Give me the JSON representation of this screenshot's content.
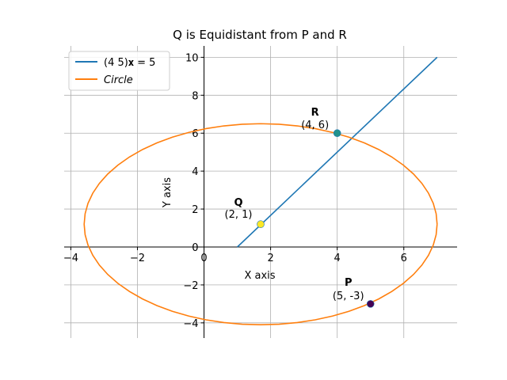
{
  "chart_data": {
    "type": "line",
    "title": "Q is Equidistant from P and R",
    "xlabel": "X axis",
    "ylabel": "Y axis",
    "xlim": [
      -4.2,
      7.6
    ],
    "ylim": [
      -4.8,
      10.6
    ],
    "xticks": [
      "−4",
      "−2",
      "0",
      "2",
      "4",
      "6"
    ],
    "xtick_values": [
      -4,
      -2,
      0,
      2,
      4,
      6
    ],
    "yticks": [
      "−4",
      "−2",
      "0",
      "2",
      "4",
      "6",
      "8",
      "10"
    ],
    "ytick_values": [
      -4,
      -2,
      0,
      2,
      4,
      6,
      8,
      10
    ],
    "grid": true,
    "spines": "centered at origin",
    "legend_position": "top-left",
    "series": [
      {
        "name": "(4   5)𝐱 = 5",
        "kind": "line",
        "color": "#1f77b4",
        "points": [
          [
            1.0,
            0.0
          ],
          [
            7.0,
            10.0
          ]
        ]
      },
      {
        "name": "Circle",
        "kind": "circle",
        "color": "#ff7f0e",
        "center": [
          1.7,
          1.2
        ],
        "radius": 5.3
      }
    ],
    "markers": [
      {
        "name": "P",
        "coords": "(5, -3)",
        "x": 5,
        "y": -3,
        "color": "#440154"
      },
      {
        "name": "R",
        "coords": "(4, 6)",
        "x": 4,
        "y": 6,
        "color": "#21918c"
      },
      {
        "name": "Q",
        "coords": "(2, 1)",
        "x": 1.7,
        "y": 1.2,
        "color": "#fde725"
      }
    ]
  }
}
